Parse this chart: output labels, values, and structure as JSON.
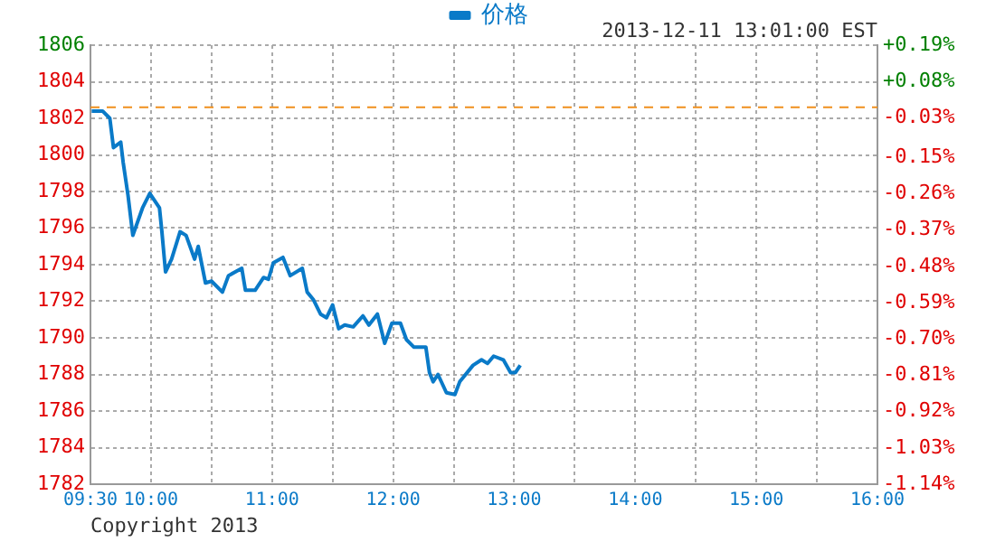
{
  "chart_data": {
    "type": "line",
    "legend": "top",
    "grid": true,
    "marker": "none",
    "line_style": "solid",
    "annotations": [
      "2013-12-11 13:01:00 EST",
      "Copyright 2013"
    ],
    "x": [
      9.51,
      9.6,
      9.66,
      9.69,
      9.75,
      9.77,
      9.81,
      9.85,
      9.93,
      9.99,
      10.07,
      10.09,
      10.12,
      10.17,
      10.24,
      10.29,
      10.36,
      10.39,
      10.45,
      10.5,
      10.59,
      10.64,
      10.75,
      10.78,
      10.86,
      10.93,
      10.97,
      11.01,
      11.09,
      11.15,
      11.25,
      11.29,
      11.34,
      11.4,
      11.45,
      11.5,
      11.55,
      11.6,
      11.67,
      11.75,
      11.8,
      11.87,
      11.93,
      11.99,
      12.06,
      12.11,
      12.17,
      12.27,
      12.3,
      12.33,
      12.37,
      12.44,
      12.51,
      12.55,
      12.66,
      12.73,
      12.78,
      12.83,
      12.91,
      12.97,
      13.01,
      13.05
    ],
    "series": [
      {
        "name": "价格",
        "color": "#0a7ac8",
        "values": [
          1802.4,
          1802.4,
          1802.0,
          1800.4,
          1800.7,
          1799.6,
          1797.8,
          1795.6,
          1797.1,
          1797.9,
          1797.1,
          1795.8,
          1793.6,
          1794.3,
          1795.8,
          1795.6,
          1794.3,
          1795.0,
          1793.0,
          1793.1,
          1792.5,
          1793.4,
          1793.8,
          1792.6,
          1792.6,
          1793.3,
          1793.2,
          1794.1,
          1794.4,
          1793.4,
          1793.8,
          1792.5,
          1792.1,
          1791.3,
          1791.1,
          1791.8,
          1790.5,
          1790.7,
          1790.6,
          1791.2,
          1790.7,
          1791.3,
          1789.7,
          1790.8,
          1790.8,
          1789.9,
          1789.5,
          1789.5,
          1788.1,
          1787.6,
          1788.0,
          1787.0,
          1786.9,
          1787.6,
          1788.5,
          1788.8,
          1788.6,
          1789.0,
          1788.8,
          1788.1,
          1788.1,
          1788.5
        ]
      }
    ],
    "xlim": [
      9.5,
      16
    ],
    "xticks": [
      {
        "value": 9.5,
        "label": "09:30"
      },
      {
        "value": 10,
        "label": "10:00"
      },
      {
        "value": 10.5,
        "label": null
      },
      {
        "value": 11,
        "label": "11:00"
      },
      {
        "value": 11.5,
        "label": null
      },
      {
        "value": 12,
        "label": "12:00"
      },
      {
        "value": 12.5,
        "label": null
      },
      {
        "value": 13,
        "label": "13:00"
      },
      {
        "value": 13.5,
        "label": null
      },
      {
        "value": 14,
        "label": "14:00"
      },
      {
        "value": 14.5,
        "label": null
      },
      {
        "value": 15,
        "label": "15:00"
      },
      {
        "value": 15.5,
        "label": null
      },
      {
        "value": 16,
        "label": "16:00"
      }
    ],
    "ylim": [
      1782,
      1806
    ],
    "yticks": [
      1782,
      1784,
      1786,
      1788,
      1790,
      1792,
      1794,
      1796,
      1798,
      1800,
      1802,
      1804,
      1806
    ],
    "y2lim": [
      -1.14,
      0.19
    ],
    "y2ticks": [
      {
        "value": 0.19,
        "label": "+0.19%"
      },
      {
        "value": 0.08,
        "label": "+0.08%"
      },
      {
        "value": -0.03,
        "label": "-0.03%"
      },
      {
        "value": -0.15,
        "label": "-0.15%"
      },
      {
        "value": -0.26,
        "label": "-0.26%"
      },
      {
        "value": -0.37,
        "label": "-0.37%"
      },
      {
        "value": -0.48,
        "label": "-0.48%"
      },
      {
        "value": -0.59,
        "label": "-0.59%"
      },
      {
        "value": -0.7,
        "label": "-0.70%"
      },
      {
        "value": -0.81,
        "label": "-0.81%"
      },
      {
        "value": -0.92,
        "label": "-0.92%"
      },
      {
        "value": -1.03,
        "label": "-1.03%"
      },
      {
        "value": -1.14,
        "label": "-1.14%"
      }
    ],
    "ref_lines": [
      {
        "axis": "y",
        "value": 1802.6,
        "color": "#f0901e",
        "line_style": "dashed"
      }
    ]
  }
}
